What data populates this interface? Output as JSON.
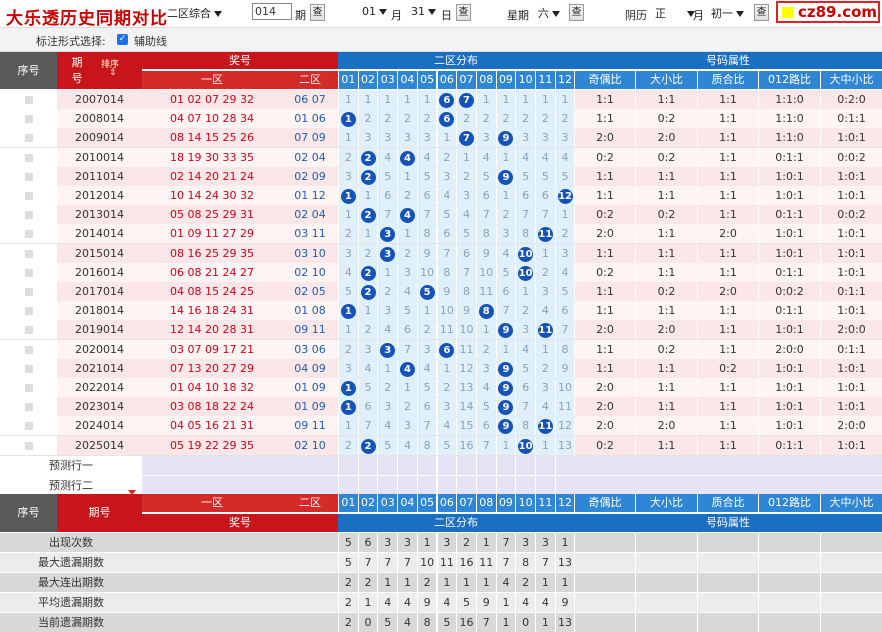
{
  "header": {
    "title": "大乐透历史同期对比",
    "zone_select": "二区综合",
    "issue_value": "014",
    "issue_label": "期",
    "query_button": "查",
    "month_value": "01",
    "month_label": "月",
    "day_value": "31",
    "day_label": "日",
    "weekday_label": "星期",
    "weekday_value": "六",
    "lunar_label": "阴历",
    "lunar_month": "正",
    "lunar_unit": "月",
    "lunar_day": "初一",
    "site_logo": "cz89.com"
  },
  "options": {
    "label": "标注形式选择:",
    "helper_line": "辅助线",
    "helper_checked": "✓"
  },
  "table": {
    "col_seq": "序号",
    "col_period": "期号",
    "sort_label": "排序",
    "col_prize": "奖号",
    "col_zone1": "一区",
    "col_zone2": "二区",
    "col_dist": "二区分布",
    "col_attr": "号码属性",
    "dist_numbers": [
      "01",
      "02",
      "03",
      "04",
      "05",
      "06",
      "07",
      "08",
      "09",
      "10",
      "11",
      "12"
    ],
    "attr_headers": [
      "奇偶比",
      "大小比",
      "质合比",
      "012路比",
      "大中小比"
    ],
    "rows": [
      {
        "period": "2007014",
        "zone1": "01 02 07 29 32",
        "zone2": "06 07",
        "dist": [
          "1",
          "1",
          "1",
          "1",
          "1",
          "6",
          "7",
          "1",
          "1",
          "1",
          "1",
          "1"
        ],
        "hits": [
          6,
          7
        ],
        "attrs": [
          "1:1",
          "1:1",
          "1:1",
          "1:1:0",
          "0:2:0"
        ]
      },
      {
        "period": "2008014",
        "zone1": "04 07 10 28 34",
        "zone2": "01 06",
        "dist": [
          "1",
          "2",
          "2",
          "2",
          "2",
          "6",
          "2",
          "2",
          "2",
          "2",
          "2",
          "2"
        ],
        "hits": [
          1,
          6
        ],
        "attrs": [
          "1:1",
          "0:2",
          "1:1",
          "1:1:0",
          "0:1:1"
        ]
      },
      {
        "period": "2009014",
        "zone1": "08 14 15 25 26",
        "zone2": "07 09",
        "dist": [
          "1",
          "3",
          "3",
          "3",
          "3",
          "1",
          "7",
          "3",
          "9",
          "3",
          "3",
          "3"
        ],
        "hits": [
          7,
          9
        ],
        "attrs": [
          "2:0",
          "2:0",
          "1:1",
          "1:1:0",
          "1:0:1"
        ]
      },
      {
        "period": "2010014",
        "zone1": "18 19 30 33 35",
        "zone2": "02 04",
        "dist": [
          "2",
          "2",
          "4",
          "4",
          "4",
          "2",
          "1",
          "4",
          "1",
          "4",
          "4",
          "4"
        ],
        "hits": [
          2,
          4
        ],
        "attrs": [
          "0:2",
          "0:2",
          "1:1",
          "0:1:1",
          "0:0:2"
        ]
      },
      {
        "period": "2011014",
        "zone1": "02 14 20 21 24",
        "zone2": "02 09",
        "dist": [
          "3",
          "2",
          "5",
          "1",
          "5",
          "3",
          "2",
          "5",
          "9",
          "5",
          "5",
          "5"
        ],
        "hits": [
          2,
          9
        ],
        "attrs": [
          "1:1",
          "1:1",
          "1:1",
          "1:0:1",
          "1:0:1"
        ]
      },
      {
        "period": "2012014",
        "zone1": "10 14 24 30 32",
        "zone2": "01 12",
        "dist": [
          "1",
          "1",
          "6",
          "2",
          "6",
          "4",
          "3",
          "6",
          "1",
          "6",
          "6",
          "12"
        ],
        "hits": [
          1,
          12
        ],
        "attrs": [
          "1:1",
          "1:1",
          "1:1",
          "1:0:1",
          "1:0:1"
        ]
      },
      {
        "period": "2013014",
        "zone1": "05 08 25 29 31",
        "zone2": "02 04",
        "dist": [
          "1",
          "2",
          "7",
          "4",
          "7",
          "5",
          "4",
          "7",
          "2",
          "7",
          "7",
          "1"
        ],
        "hits": [
          2,
          4
        ],
        "attrs": [
          "0:2",
          "0:2",
          "1:1",
          "0:1:1",
          "0:0:2"
        ]
      },
      {
        "period": "2014014",
        "zone1": "01 09 11 27 29",
        "zone2": "03 11",
        "dist": [
          "2",
          "1",
          "3",
          "1",
          "8",
          "6",
          "5",
          "8",
          "3",
          "8",
          "11",
          "2"
        ],
        "hits": [
          3,
          11
        ],
        "attrs": [
          "2:0",
          "1:1",
          "2:0",
          "1:0:1",
          "1:0:1"
        ]
      },
      {
        "period": "2015014",
        "zone1": "08 16 25 29 35",
        "zone2": "03 10",
        "dist": [
          "3",
          "2",
          "3",
          "2",
          "9",
          "7",
          "6",
          "9",
          "4",
          "10",
          "1",
          "3"
        ],
        "hits": [
          3,
          10
        ],
        "attrs": [
          "1:1",
          "1:1",
          "1:1",
          "1:0:1",
          "1:0:1"
        ]
      },
      {
        "period": "2016014",
        "zone1": "06 08 21 24 27",
        "zone2": "02 10",
        "dist": [
          "4",
          "2",
          "1",
          "3",
          "10",
          "8",
          "7",
          "10",
          "5",
          "10",
          "2",
          "4"
        ],
        "hits": [
          2,
          10
        ],
        "attrs": [
          "0:2",
          "1:1",
          "1:1",
          "0:1:1",
          "1:0:1"
        ]
      },
      {
        "period": "2017014",
        "zone1": "04 08 15 24 25",
        "zone2": "02 05",
        "dist": [
          "5",
          "2",
          "2",
          "4",
          "5",
          "9",
          "8",
          "11",
          "6",
          "1",
          "3",
          "5"
        ],
        "hits": [
          2,
          5
        ],
        "attrs": [
          "1:1",
          "0:2",
          "2:0",
          "0:0:2",
          "0:1:1"
        ]
      },
      {
        "period": "2018014",
        "zone1": "14 16 18 24 31",
        "zone2": "01 08",
        "dist": [
          "1",
          "1",
          "3",
          "5",
          "1",
          "10",
          "9",
          "8",
          "7",
          "2",
          "4",
          "6"
        ],
        "hits": [
          1,
          8
        ],
        "attrs": [
          "1:1",
          "1:1",
          "1:1",
          "0:1:1",
          "1:0:1"
        ]
      },
      {
        "period": "2019014",
        "zone1": "12 14 20 28 31",
        "zone2": "09 11",
        "dist": [
          "1",
          "2",
          "4",
          "6",
          "2",
          "11",
          "10",
          "1",
          "9",
          "3",
          "11",
          "7"
        ],
        "hits": [
          9,
          11
        ],
        "attrs": [
          "2:0",
          "2:0",
          "1:1",
          "1:0:1",
          "2:0:0"
        ]
      },
      {
        "period": "2020014",
        "zone1": "03 07 09 17 21",
        "zone2": "03 06",
        "dist": [
          "2",
          "3",
          "3",
          "7",
          "3",
          "6",
          "11",
          "2",
          "1",
          "4",
          "1",
          "8"
        ],
        "hits": [
          3,
          6
        ],
        "attrs": [
          "1:1",
          "0:2",
          "1:1",
          "2:0:0",
          "0:1:1"
        ]
      },
      {
        "period": "2021014",
        "zone1": "07 13 20 27 29",
        "zone2": "04 09",
        "dist": [
          "3",
          "4",
          "1",
          "4",
          "4",
          "1",
          "12",
          "3",
          "9",
          "5",
          "2",
          "9"
        ],
        "hits": [
          4,
          9
        ],
        "attrs": [
          "1:1",
          "1:1",
          "0:2",
          "1:0:1",
          "1:0:1"
        ]
      },
      {
        "period": "2022014",
        "zone1": "01 04 10 18 32",
        "zone2": "01 09",
        "dist": [
          "1",
          "5",
          "2",
          "1",
          "5",
          "2",
          "13",
          "4",
          "9",
          "6",
          "3",
          "10"
        ],
        "hits": [
          1,
          9
        ],
        "attrs": [
          "2:0",
          "1:1",
          "1:1",
          "1:0:1",
          "1:0:1"
        ]
      },
      {
        "period": "2023014",
        "zone1": "03 08 18 22 24",
        "zone2": "01 09",
        "dist": [
          "1",
          "6",
          "3",
          "2",
          "6",
          "3",
          "14",
          "5",
          "9",
          "7",
          "4",
          "11"
        ],
        "hits": [
          1,
          9
        ],
        "attrs": [
          "2:0",
          "1:1",
          "1:1",
          "1:0:1",
          "1:0:1"
        ]
      },
      {
        "period": "2024014",
        "zone1": "04 05 16 21 31",
        "zone2": "09 11",
        "dist": [
          "1",
          "7",
          "4",
          "3",
          "7",
          "4",
          "15",
          "6",
          "9",
          "8",
          "11",
          "12"
        ],
        "hits": [
          9,
          11
        ],
        "attrs": [
          "2:0",
          "2:0",
          "1:1",
          "1:0:1",
          "2:0:0"
        ]
      },
      {
        "period": "2025014",
        "zone1": "05 19 22 29 35",
        "zone2": "02 10",
        "dist": [
          "2",
          "2",
          "5",
          "4",
          "8",
          "5",
          "16",
          "7",
          "1",
          "10",
          "1",
          "13"
        ],
        "hits": [
          2,
          10
        ],
        "attrs": [
          "0:2",
          "1:1",
          "1:1",
          "0:1:1",
          "1:0:1"
        ]
      }
    ],
    "predict1": "预测行一",
    "predict2": "预测行二",
    "stats": [
      {
        "label": "出现次数",
        "values": [
          "5",
          "6",
          "3",
          "3",
          "1",
          "3",
          "2",
          "1",
          "7",
          "3",
          "3",
          "1"
        ]
      },
      {
        "label": "最大遗漏期数",
        "values": [
          "5",
          "7",
          "7",
          "7",
          "10",
          "11",
          "16",
          "11",
          "7",
          "8",
          "7",
          "13"
        ]
      },
      {
        "label": "最大连出期数",
        "values": [
          "2",
          "2",
          "1",
          "1",
          "2",
          "1",
          "1",
          "1",
          "4",
          "2",
          "1",
          "1"
        ]
      },
      {
        "label": "平均遗漏期数",
        "values": [
          "2",
          "1",
          "4",
          "4",
          "9",
          "4",
          "5",
          "9",
          "1",
          "4",
          "4",
          "9"
        ]
      },
      {
        "label": "当前遗漏期数",
        "values": [
          "2",
          "0",
          "5",
          "4",
          "8",
          "5",
          "16",
          "7",
          "1",
          "0",
          "1",
          "13"
        ]
      }
    ]
  }
}
